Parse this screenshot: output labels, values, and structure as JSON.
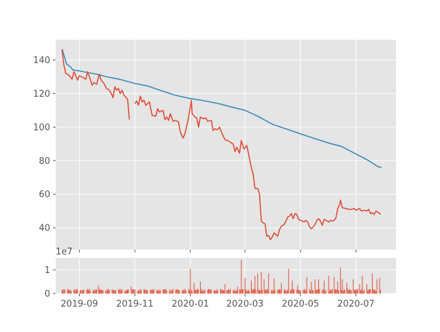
{
  "chart_data": [
    {
      "type": "line",
      "style": "ggplot",
      "grid": true,
      "xlim": [
        "2019-08-06",
        "2020-08-14"
      ],
      "ylim": [
        27,
        152
      ],
      "y_ticks": [
        40,
        60,
        80,
        100,
        120,
        140
      ],
      "x_ticks": [
        "2019-09-01",
        "2019-11-01",
        "2020-01-01",
        "2020-03-01",
        "2020-05-01",
        "2020-07-01"
      ],
      "colors": {
        "declining_line": "#348ABD",
        "price_line": "#E24A33",
        "panel_bg": "#E5E5E5",
        "grid": "#FFFFFF"
      },
      "series": [
        {
          "color": "#348ABD",
          "points": [
            [
              "2019-08-13",
              146.5
            ],
            [
              "2019-08-15",
              143
            ],
            [
              "2019-08-18",
              137.5
            ],
            [
              "2019-08-22",
              136
            ],
            [
              "2019-08-25",
              134
            ],
            [
              "2019-09-01",
              133.5
            ],
            [
              "2019-09-10",
              132.5
            ],
            [
              "2019-09-20",
              131.5
            ],
            [
              "2019-10-01",
              130
            ],
            [
              "2019-10-15",
              128.5
            ],
            [
              "2019-11-01",
              126
            ],
            [
              "2019-11-15",
              124.5
            ],
            [
              "2019-12-01",
              121.5
            ],
            [
              "2019-12-15",
              119
            ],
            [
              "2020-01-01",
              117
            ],
            [
              "2020-01-15",
              115.8
            ],
            [
              "2020-02-01",
              114
            ],
            [
              "2020-02-15",
              112
            ],
            [
              "2020-03-01",
              110
            ],
            [
              "2020-03-15",
              106.5
            ],
            [
              "2020-04-01",
              101.5
            ],
            [
              "2020-04-15",
              99
            ],
            [
              "2020-05-01",
              96
            ],
            [
              "2020-05-15",
              93.5
            ],
            [
              "2020-06-01",
              90.5
            ],
            [
              "2020-06-15",
              88.5
            ],
            [
              "2020-07-01",
              84
            ],
            [
              "2020-07-15",
              80
            ],
            [
              "2020-07-25",
              76.5
            ],
            [
              "2020-07-29",
              76
            ]
          ]
        },
        {
          "color": "#E24A33",
          "segments": [
            [
              [
                "2019-08-13",
                146
              ],
              [
                "2019-08-15",
                137
              ],
              [
                "2019-08-17",
                132
              ],
              [
                "2019-08-19",
                131.5
              ],
              [
                "2019-08-22",
                130
              ],
              [
                "2019-08-24",
                128.5
              ],
              [
                "2019-08-26",
                133
              ],
              [
                "2019-08-28",
                130.5
              ],
              [
                "2019-08-30",
                128
              ],
              [
                "2019-09-01",
                130.5
              ],
              [
                "2019-09-05",
                129.5
              ],
              [
                "2019-09-08",
                128.5
              ],
              [
                "2019-09-10",
                133
              ],
              [
                "2019-09-13",
                128.5
              ],
              [
                "2019-09-15",
                125
              ],
              [
                "2019-09-17",
                126.5
              ],
              [
                "2019-09-20",
                125.5
              ],
              [
                "2019-09-23",
                131.5
              ],
              [
                "2019-09-25",
                128
              ],
              [
                "2019-09-28",
                126
              ],
              [
                "2019-10-01",
                123
              ],
              [
                "2019-10-04",
                122
              ],
              [
                "2019-10-06",
                120
              ],
              [
                "2019-10-08",
                117.5
              ],
              [
                "2019-10-10",
                124
              ],
              [
                "2019-10-12",
                122
              ],
              [
                "2019-10-14",
                123
              ],
              [
                "2019-10-16",
                120
              ],
              [
                "2019-10-18",
                122
              ],
              [
                "2019-10-20",
                119
              ],
              [
                "2019-10-24",
                116.5
              ],
              [
                "2019-10-26",
                104.5
              ]
            ],
            [
              [
                "2019-11-01",
                114
              ],
              [
                "2019-11-03",
                115.5
              ],
              [
                "2019-11-05",
                113
              ],
              [
                "2019-11-07",
                118.5
              ],
              [
                "2019-11-09",
                115
              ],
              [
                "2019-11-11",
                116
              ],
              [
                "2019-11-13",
                113
              ],
              [
                "2019-11-15",
                114
              ],
              [
                "2019-11-17",
                115
              ],
              [
                "2019-11-20",
                107
              ],
              [
                "2019-11-24",
                106.5
              ],
              [
                "2019-11-26",
                111
              ],
              [
                "2019-11-28",
                109
              ],
              [
                "2019-12-02",
                110
              ],
              [
                "2019-12-04",
                104.5
              ],
              [
                "2019-12-06",
                106
              ],
              [
                "2019-12-08",
                104
              ],
              [
                "2019-12-10",
                108
              ],
              [
                "2019-12-13",
                103.5
              ],
              [
                "2019-12-16",
                104
              ],
              [
                "2019-12-19",
                103
              ],
              [
                "2019-12-21",
                97
              ],
              [
                "2019-12-24",
                93.5
              ],
              [
                "2019-12-26",
                96
              ],
              [
                "2019-12-29",
                103
              ],
              [
                "2020-01-01",
                112
              ],
              [
                "2020-01-02",
                116
              ],
              [
                "2020-01-03",
                108
              ],
              [
                "2020-01-06",
                106
              ],
              [
                "2020-01-08",
                105.5
              ],
              [
                "2020-01-10",
                100
              ],
              [
                "2020-01-12",
                106
              ],
              [
                "2020-01-15",
                105
              ],
              [
                "2020-01-18",
                105.5
              ],
              [
                "2020-01-20",
                103.5
              ],
              [
                "2020-01-24",
                104
              ],
              [
                "2020-01-26",
                98
              ],
              [
                "2020-01-28",
                99
              ],
              [
                "2020-01-31",
                98.5
              ],
              [
                "2020-02-02",
                100
              ],
              [
                "2020-02-05",
                96
              ],
              [
                "2020-02-08",
                92.5
              ],
              [
                "2020-02-11",
                92
              ],
              [
                "2020-02-14",
                91
              ],
              [
                "2020-02-17",
                90
              ],
              [
                "2020-02-19",
                85.5
              ],
              [
                "2020-02-21",
                88
              ],
              [
                "2020-02-24",
                84.5
              ],
              [
                "2020-02-26",
                92
              ],
              [
                "2020-02-29",
                87
              ],
              [
                "2020-03-03",
                89
              ],
              [
                "2020-03-05",
                84
              ],
              [
                "2020-03-08",
                76
              ],
              [
                "2020-03-10",
                72
              ],
              [
                "2020-03-12",
                63.5
              ],
              [
                "2020-03-15",
                63.5
              ],
              [
                "2020-03-17",
                60
              ],
              [
                "2020-03-19",
                44
              ],
              [
                "2020-03-21",
                43
              ],
              [
                "2020-03-23",
                42.5
              ],
              [
                "2020-03-25",
                35
              ],
              [
                "2020-03-27",
                35.5
              ],
              [
                "2020-03-29",
                33
              ],
              [
                "2020-03-31",
                34.5
              ],
              [
                "2020-04-02",
                37
              ],
              [
                "2020-04-04",
                36
              ],
              [
                "2020-04-06",
                35
              ],
              [
                "2020-04-08",
                39
              ],
              [
                "2020-04-10",
                41
              ],
              [
                "2020-04-13",
                42
              ],
              [
                "2020-04-15",
                44
              ],
              [
                "2020-04-17",
                46.5
              ],
              [
                "2020-04-19",
                47
              ],
              [
                "2020-04-21",
                48.5
              ],
              [
                "2020-04-23",
                45.5
              ],
              [
                "2020-04-25",
                48.5
              ],
              [
                "2020-04-27",
                48
              ],
              [
                "2020-04-29",
                45
              ],
              [
                "2020-05-01",
                44.5
              ],
              [
                "2020-05-03",
                44
              ],
              [
                "2020-05-05",
                43.5
              ],
              [
                "2020-05-07",
                44.5
              ],
              [
                "2020-05-09",
                43.5
              ],
              [
                "2020-05-11",
                40.5
              ],
              [
                "2020-05-13",
                39.5
              ],
              [
                "2020-05-15",
                40.5
              ],
              [
                "2020-05-17",
                42
              ],
              [
                "2020-05-19",
                44.5
              ],
              [
                "2020-05-21",
                45.5
              ],
              [
                "2020-05-23",
                44
              ],
              [
                "2020-05-25",
                41.5
              ],
              [
                "2020-05-27",
                45
              ],
              [
                "2020-05-29",
                44.5
              ],
              [
                "2020-06-01",
                43.5
              ],
              [
                "2020-06-03",
                44.5
              ],
              [
                "2020-06-05",
                44
              ],
              [
                "2020-06-07",
                44.5
              ],
              [
                "2020-06-09",
                46
              ],
              [
                "2020-06-11",
                51.5
              ],
              [
                "2020-06-13",
                54
              ],
              [
                "2020-06-14",
                56.5
              ],
              [
                "2020-06-16",
                52
              ],
              [
                "2020-06-20",
                51.5
              ],
              [
                "2020-06-23",
                51
              ],
              [
                "2020-06-26",
                51
              ],
              [
                "2020-06-29",
                51.5
              ],
              [
                "2020-07-01",
                50.5
              ],
              [
                "2020-07-03",
                51
              ],
              [
                "2020-07-05",
                51.5
              ],
              [
                "2020-07-07",
                50
              ],
              [
                "2020-07-10",
                50.5
              ],
              [
                "2020-07-13",
                50
              ],
              [
                "2020-07-15",
                51
              ],
              [
                "2020-07-17",
                48.5
              ],
              [
                "2020-07-19",
                49
              ],
              [
                "2020-07-21",
                48
              ],
              [
                "2020-07-23",
                50
              ],
              [
                "2020-07-26",
                49
              ],
              [
                "2020-07-28",
                48
              ]
            ]
          ]
        }
      ]
    },
    {
      "type": "bar",
      "grid": true,
      "offset_label": "1e7",
      "ylim": [
        0,
        1.5
      ],
      "y_ticks": [
        0,
        1
      ],
      "xlim": [
        "2019-08-06",
        "2020-08-14"
      ],
      "x_ticks": [
        "2019-09-01",
        "2019-11-01",
        "2020-01-01",
        "2020-03-01",
        "2020-05-01",
        "2020-07-01"
      ],
      "x_tick_labels": [
        "2019-09",
        "2019-11",
        "2020-01",
        "2020-03",
        "2020-05",
        "2020-07"
      ],
      "color": "#E24A33",
      "date_range": [
        "2019-08-13",
        "2020-07-28"
      ],
      "typical_value": 0.15,
      "notable_values": [
        [
          "2019-09-22",
          0.35
        ],
        [
          "2019-10-28",
          0.3
        ],
        [
          "2020-01-01",
          1.05
        ],
        [
          "2020-01-05",
          0.45
        ],
        [
          "2020-01-12",
          0.5
        ],
        [
          "2020-02-08",
          0.4
        ],
        [
          "2020-02-22",
          0.3
        ],
        [
          "2020-02-26",
          1.42
        ],
        [
          "2020-03-01",
          0.65
        ],
        [
          "2020-03-08",
          0.55
        ],
        [
          "2020-03-12",
          0.75
        ],
        [
          "2020-03-15",
          0.85
        ],
        [
          "2020-03-19",
          0.9
        ],
        [
          "2020-03-22",
          0.6
        ],
        [
          "2020-03-27",
          0.85
        ],
        [
          "2020-04-02",
          0.65
        ],
        [
          "2020-04-10",
          0.45
        ],
        [
          "2020-04-18",
          1.05
        ],
        [
          "2020-04-22",
          0.55
        ],
        [
          "2020-04-28",
          0.35
        ],
        [
          "2020-05-08",
          0.7
        ],
        [
          "2020-05-13",
          0.5
        ],
        [
          "2020-05-17",
          0.6
        ],
        [
          "2020-05-21",
          0.6
        ],
        [
          "2020-05-27",
          0.55
        ],
        [
          "2020-06-01",
          0.75
        ],
        [
          "2020-06-07",
          0.7
        ],
        [
          "2020-06-11",
          0.5
        ],
        [
          "2020-06-14",
          1.1
        ],
        [
          "2020-06-16",
          0.6
        ],
        [
          "2020-06-21",
          0.45
        ],
        [
          "2020-06-28",
          0.6
        ],
        [
          "2020-07-05",
          0.4
        ],
        [
          "2020-07-08",
          0.75
        ],
        [
          "2020-07-13",
          0.4
        ],
        [
          "2020-07-19",
          0.85
        ],
        [
          "2020-07-24",
          0.6
        ],
        [
          "2020-07-27",
          0.65
        ]
      ]
    }
  ]
}
